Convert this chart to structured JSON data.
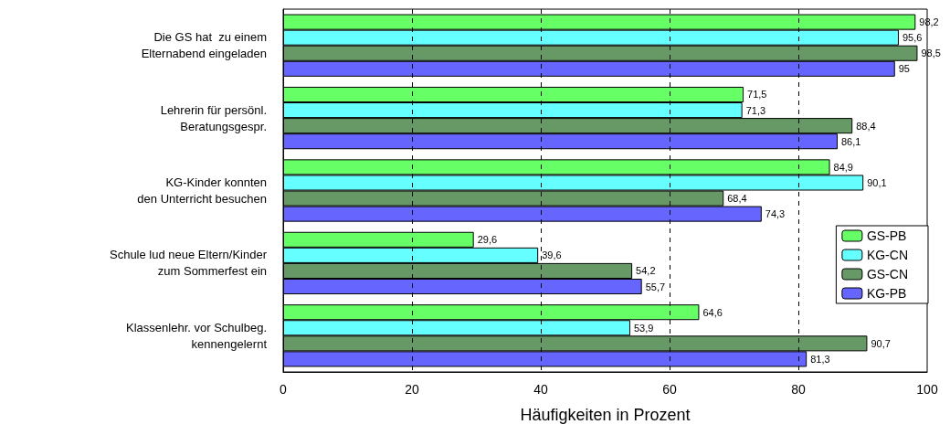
{
  "chart_data": {
    "type": "bar",
    "orientation": "horizontal",
    "xlabel": "Häufigkeiten in Prozent",
    "categories": [
      "Die GS hat  zu einem\nElternabend eingeladen",
      "Lehrerin für persönl.\nBeratungsgespr.",
      "KG-Kinder konnten\nden Unterricht besuchen",
      "Schule lud neue Eltern/Kinder\nzum Sommerfest ein",
      "Klassenlehr. vor Schulbeg.\nkennengelernt"
    ],
    "series": [
      {
        "name": "GS-PB",
        "color": "#66ff66",
        "values": [
          98.2,
          71.5,
          84.9,
          29.6,
          64.6
        ],
        "value_labels": [
          "98,2",
          "71,5",
          "84,9",
          "29,6",
          "64,6"
        ]
      },
      {
        "name": "KG-CN",
        "color": "#66ffff",
        "values": [
          95.6,
          71.3,
          90.1,
          39.6,
          53.9
        ],
        "value_labels": [
          "95,6",
          "71,3",
          "90,1",
          "39,6",
          "53,9"
        ]
      },
      {
        "name": "GS-CN",
        "color": "#669966",
        "values": [
          98.5,
          88.4,
          68.4,
          54.2,
          90.7
        ],
        "value_labels": [
          "98,5",
          "88,4",
          "68,4",
          "54,2",
          "90,7"
        ]
      },
      {
        "name": "KG-PB",
        "color": "#6666ff",
        "values": [
          95,
          86.1,
          74.3,
          55.7,
          81.3
        ],
        "value_labels": [
          "95",
          "86,1",
          "74,3",
          "55,7",
          "81,3"
        ]
      }
    ],
    "xlim": [
      0,
      100
    ],
    "xticks": [
      0,
      20,
      40,
      60,
      80,
      100
    ],
    "grid": "x",
    "legend": "right"
  }
}
